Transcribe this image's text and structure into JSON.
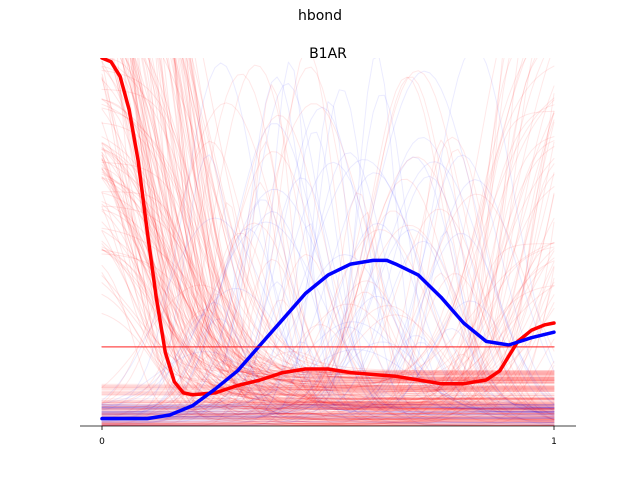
{
  "figure": {
    "suptitle": "hbond"
  },
  "chart_data": {
    "type": "line",
    "title": "B1AR",
    "xlabel": "",
    "ylabel": "",
    "xlim": [
      0,
      1
    ],
    "xticks": [
      "0",
      "1"
    ],
    "ylim": [
      0,
      1
    ],
    "yticks_visible": false,
    "grid": false,
    "legend": "none",
    "colors": {
      "red": "#ff0000",
      "blue": "#0000ff"
    },
    "series": [
      {
        "color": "#ff0000",
        "linewidth": "thick",
        "x": [
          0.0,
          0.02,
          0.04,
          0.06,
          0.08,
          0.1,
          0.12,
          0.14,
          0.16,
          0.18,
          0.2,
          0.25,
          0.3,
          0.35,
          0.4,
          0.45,
          0.5,
          0.55,
          0.6,
          0.65,
          0.7,
          0.75,
          0.8,
          0.85,
          0.88,
          0.9,
          0.92,
          0.95,
          0.98,
          1.0
        ],
        "y": [
          1.0,
          0.99,
          0.95,
          0.86,
          0.72,
          0.53,
          0.35,
          0.2,
          0.12,
          0.09,
          0.085,
          0.09,
          0.11,
          0.125,
          0.145,
          0.155,
          0.155,
          0.145,
          0.14,
          0.135,
          0.125,
          0.115,
          0.115,
          0.125,
          0.15,
          0.19,
          0.23,
          0.26,
          0.275,
          0.28
        ]
      },
      {
        "color": "#0000ff",
        "linewidth": "thick",
        "x": [
          0.0,
          0.05,
          0.1,
          0.15,
          0.2,
          0.25,
          0.3,
          0.35,
          0.4,
          0.45,
          0.5,
          0.55,
          0.6,
          0.63,
          0.65,
          0.7,
          0.75,
          0.8,
          0.85,
          0.9,
          0.95,
          1.0
        ],
        "y": [
          0.02,
          0.02,
          0.02,
          0.03,
          0.055,
          0.1,
          0.15,
          0.22,
          0.29,
          0.36,
          0.41,
          0.44,
          0.45,
          0.45,
          0.44,
          0.41,
          0.35,
          0.28,
          0.23,
          0.22,
          0.24,
          0.255
        ]
      },
      {
        "color": "#ff0000",
        "linewidth": "thin",
        "x": [
          0.0,
          1.0
        ],
        "y": [
          0.215,
          0.215
        ]
      }
    ],
    "background_traces": [
      {
        "color": "#ff0000",
        "count": 160,
        "shape": "decay",
        "alpha": 0.1
      },
      {
        "color": "#ff0000",
        "count": 50,
        "shape": "hump",
        "alpha": 0.09
      },
      {
        "color": "#0000ff",
        "count": 55,
        "shape": "hump",
        "alpha": 0.08
      },
      {
        "color": "#ff0000",
        "count": 60,
        "shape": "rise",
        "alpha": 0.09
      }
    ]
  }
}
